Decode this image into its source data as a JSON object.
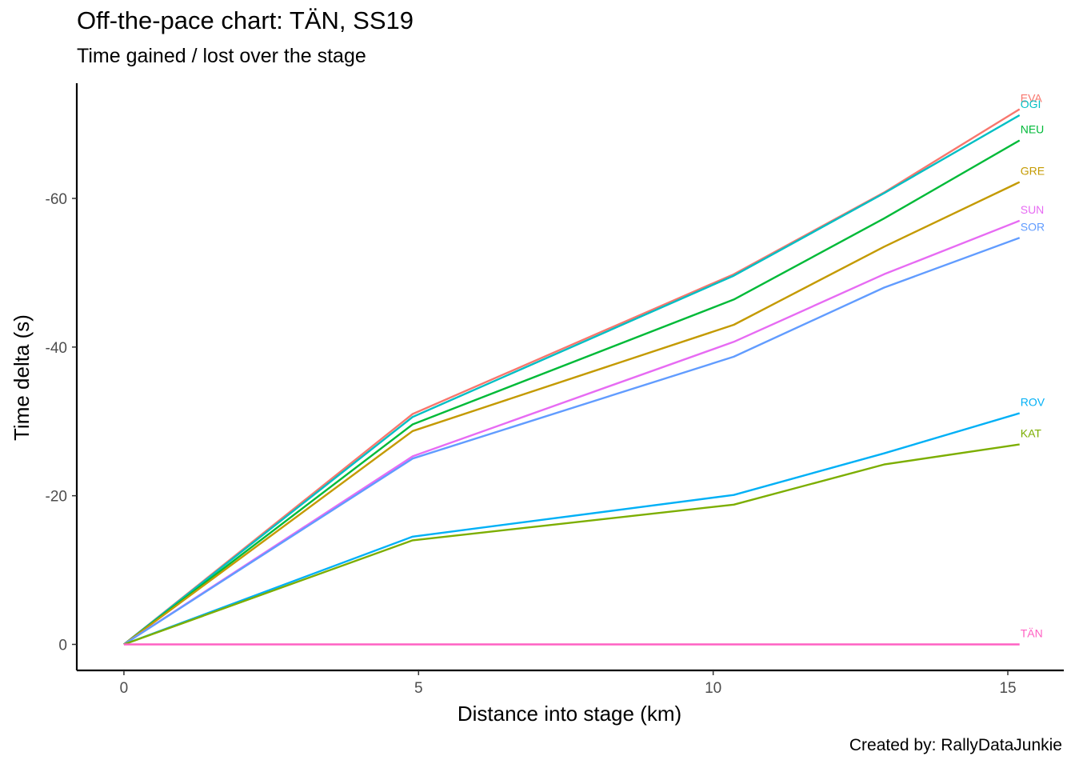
{
  "title": "Off-the-pace chart: TÄN, SS19",
  "subtitle": "Time gained / lost over the stage",
  "caption": "Created by: RallyDataJunkie",
  "chart_data": {
    "type": "line",
    "xlabel": "Distance into stage (km)",
    "ylabel": "Time delta (s)",
    "x": [
      0,
      4.9,
      10.35,
      12.9,
      15.2
    ],
    "xlim": [
      -0.8,
      15.95
    ],
    "ylim": [
      3.5,
      -75.5
    ],
    "y_reversed": true,
    "x_ticks": [
      0,
      5,
      10,
      15
    ],
    "y_ticks": [
      0,
      -20,
      -40,
      -60
    ],
    "x_tick_labels": [
      "0",
      "5",
      "10",
      "15"
    ],
    "y_tick_labels": [
      "0",
      "-20",
      "-40",
      "-60"
    ],
    "grid": false,
    "legend": "none",
    "series": [
      {
        "name": "EVA",
        "color": "#F8766D",
        "values": [
          0,
          -31.0,
          -49.8,
          -60.8,
          -72.0
        ]
      },
      {
        "name": "OGI",
        "color": "#00BFC4",
        "values": [
          0,
          -30.6,
          -49.6,
          -60.7,
          -71.2
        ]
      },
      {
        "name": "NEU",
        "color": "#00BA38",
        "values": [
          0,
          -29.6,
          -46.4,
          -57.3,
          -67.8
        ]
      },
      {
        "name": "GRE",
        "color": "#C49A00",
        "values": [
          0,
          -28.7,
          -43.0,
          -53.5,
          -62.2
        ]
      },
      {
        "name": "SUN",
        "color": "#E76BF3",
        "values": [
          0,
          -25.3,
          -40.7,
          -49.8,
          -57.0
        ]
      },
      {
        "name": "SOR",
        "color": "#619CFF",
        "values": [
          0,
          -25.0,
          -38.7,
          -48.0,
          -54.7
        ]
      },
      {
        "name": "ROV",
        "color": "#00B0F6",
        "values": [
          0,
          -14.5,
          -20.1,
          -25.7,
          -31.1
        ]
      },
      {
        "name": "KAT",
        "color": "#7CAE00",
        "values": [
          0,
          -14.0,
          -18.8,
          -24.2,
          -26.9
        ]
      },
      {
        "name": "TÄN",
        "color": "#FF61C3",
        "values": [
          0,
          0,
          0,
          0,
          0
        ]
      }
    ]
  }
}
